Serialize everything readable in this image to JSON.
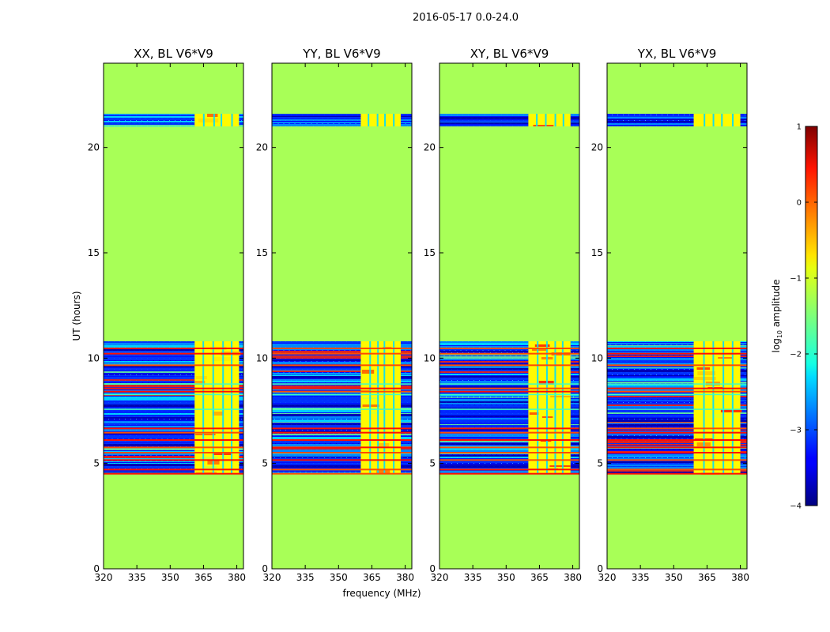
{
  "figure": {
    "suptitle": "2016-05-17 0.0-24.0",
    "xlabel": "frequency (MHz)",
    "ylabel": "UT (hours)"
  },
  "chart_data": {
    "type": "heatmap",
    "title": "2016-05-17 0.0-24.0",
    "xlabel": "frequency (MHz)",
    "ylabel": "UT (hours)",
    "xlim": [
      320,
      383
    ],
    "ylim": [
      0,
      24
    ],
    "xticks": [
      320,
      335,
      350,
      365,
      380
    ],
    "yticks": [
      0,
      5,
      10,
      15,
      20
    ],
    "panels": [
      {
        "title": "XX, BL V6*V9",
        "band_x": [
          361,
          381
        ]
      },
      {
        "title": "YY, BL V6*V9",
        "band_x": [
          360,
          378
        ]
      },
      {
        "title": "XY, BL V6*V9",
        "band_x": [
          360,
          379
        ]
      },
      {
        "title": "YX, BL V6*V9",
        "band_x": [
          359,
          380
        ]
      }
    ],
    "data_segments_ut": [
      [
        4.5,
        10.8
      ],
      [
        21.0,
        21.6
      ]
    ],
    "colorbar": {
      "label": "log10 amplitude",
      "label_main": "log",
      "label_sub": "10",
      "label_rest": " amplitude",
      "ticks": [
        -4,
        -3,
        -2,
        -1,
        0,
        1
      ],
      "tick_labels": [
        "−4",
        "−3",
        "−2",
        "−1",
        "0",
        "1"
      ],
      "range": [
        -4,
        1
      ],
      "fill_value": -1.3
    }
  }
}
